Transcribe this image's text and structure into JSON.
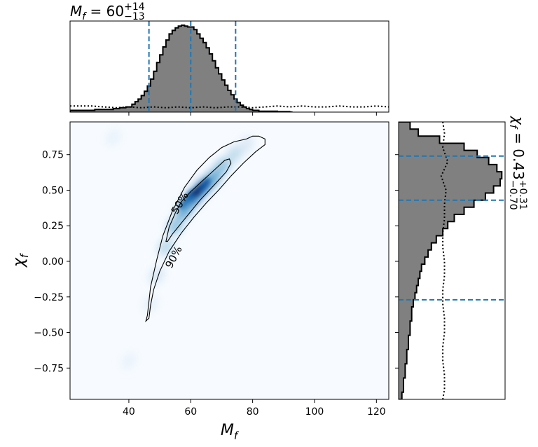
{
  "chart_data": {
    "type": "corner",
    "main": {
      "type": "heatmap",
      "colormap": "Blues",
      "xlim": [
        21,
        124
      ],
      "ylim": [
        -0.97,
        0.98
      ],
      "x_ticks": [
        40,
        60,
        80,
        100,
        120
      ],
      "y_ticks": [
        -0.75,
        -0.5,
        -0.25,
        0.0,
        0.25,
        0.5,
        0.75
      ],
      "x_tick_labels": [
        "40",
        "60",
        "80",
        "100",
        "120"
      ],
      "y_tick_labels": [
        "−0.75",
        "−0.50",
        "−0.25",
        "0.00",
        "0.25",
        "0.50",
        "0.75"
      ],
      "xlabel_base": "M",
      "xlabel_sub": "f",
      "ylabel_base": "χ",
      "ylabel_sub": "f",
      "contours": [
        {
          "label": "50%",
          "points": [
            [
              52,
              0.14
            ],
            [
              53,
              0.24
            ],
            [
              55,
              0.34
            ],
            [
              57,
              0.42
            ],
            [
              60,
              0.49
            ],
            [
              63,
              0.55
            ],
            [
              66,
              0.61
            ],
            [
              69,
              0.67
            ],
            [
              71,
              0.71
            ],
            [
              72.5,
              0.72
            ],
            [
              73,
              0.69
            ],
            [
              71.5,
              0.63
            ],
            [
              69,
              0.57
            ],
            [
              66,
              0.5
            ],
            [
              63,
              0.43
            ],
            [
              60,
              0.35
            ],
            [
              57,
              0.27
            ],
            [
              54,
              0.19
            ],
            [
              52.5,
              0.14
            ],
            [
              52,
              0.14
            ]
          ]
        },
        {
          "label": "90%",
          "points": [
            [
              45.5,
              -0.42
            ],
            [
              46,
              -0.38
            ],
            [
              47,
              -0.18
            ],
            [
              49,
              0.01
            ],
            [
              51,
              0.18
            ],
            [
              54,
              0.35
            ],
            [
              58,
              0.52
            ],
            [
              62,
              0.64
            ],
            [
              66,
              0.73
            ],
            [
              70,
              0.8
            ],
            [
              74,
              0.84
            ],
            [
              78,
              0.86
            ],
            [
              80,
              0.88
            ],
            [
              82,
              0.88
            ],
            [
              84,
              0.86
            ],
            [
              84,
              0.82
            ],
            [
              81,
              0.77
            ],
            [
              77,
              0.69
            ],
            [
              73,
              0.6
            ],
            [
              69,
              0.5
            ],
            [
              65,
              0.41
            ],
            [
              61,
              0.31
            ],
            [
              57,
              0.2
            ],
            [
              53,
              0.07
            ],
            [
              50,
              -0.07
            ],
            [
              48,
              -0.2
            ],
            [
              47,
              -0.31
            ],
            [
              46.5,
              -0.4
            ],
            [
              45.5,
              -0.42
            ]
          ]
        }
      ],
      "contour_label_positions": [
        {
          "text": "50%",
          "x": 56.5,
          "y": 0.41,
          "angle": -60
        },
        {
          "text": "90%",
          "x": 54.5,
          "y": 0.03,
          "angle": -62
        }
      ]
    },
    "top_hist": {
      "title_base": "M",
      "title_sub": "f",
      "title_value": " = 60",
      "title_upper": "+14",
      "title_lower": "−13",
      "median": 60,
      "lower": 46.5,
      "upper": 74.5,
      "bins": [
        [
          21,
          0.02
        ],
        [
          23,
          0.02
        ],
        [
          25,
          0.02
        ],
        [
          27,
          0.02
        ],
        [
          29,
          0.03
        ],
        [
          31,
          0.03
        ],
        [
          33,
          0.03
        ],
        [
          35,
          0.04
        ],
        [
          37,
          0.05
        ],
        [
          39,
          0.06
        ],
        [
          41,
          0.09
        ],
        [
          42,
          0.12
        ],
        [
          43,
          0.15
        ],
        [
          44,
          0.19
        ],
        [
          45,
          0.24
        ],
        [
          46,
          0.3
        ],
        [
          47,
          0.38
        ],
        [
          48,
          0.47
        ],
        [
          49,
          0.57
        ],
        [
          50,
          0.66
        ],
        [
          51,
          0.75
        ],
        [
          52,
          0.83
        ],
        [
          53,
          0.9
        ],
        [
          54,
          0.94
        ],
        [
          55,
          0.97
        ],
        [
          56,
          0.99
        ],
        [
          57,
          1.0
        ],
        [
          58,
          0.99
        ],
        [
          59,
          0.98
        ],
        [
          60,
          0.98
        ],
        [
          61,
          0.95
        ],
        [
          62,
          0.9
        ],
        [
          63,
          0.85
        ],
        [
          64,
          0.8
        ],
        [
          65,
          0.74
        ],
        [
          66,
          0.67
        ],
        [
          67,
          0.59
        ],
        [
          68,
          0.51
        ],
        [
          69,
          0.44
        ],
        [
          70,
          0.37
        ],
        [
          71,
          0.31
        ],
        [
          72,
          0.25
        ],
        [
          73,
          0.2
        ],
        [
          74,
          0.15
        ],
        [
          75,
          0.11
        ],
        [
          76,
          0.08
        ],
        [
          77,
          0.06
        ],
        [
          78,
          0.04
        ],
        [
          79,
          0.03
        ],
        [
          80,
          0.02
        ],
        [
          82,
          0.01
        ],
        [
          84,
          0.01
        ],
        [
          88,
          0.005
        ],
        [
          92,
          0.0
        ]
      ],
      "prior": [
        [
          21,
          0.07
        ],
        [
          28,
          0.07
        ],
        [
          32,
          0.06
        ],
        [
          36,
          0.05
        ],
        [
          40,
          0.06
        ],
        [
          44,
          0.05
        ],
        [
          48,
          0.06
        ],
        [
          52,
          0.05
        ],
        [
          56,
          0.06
        ],
        [
          60,
          0.05
        ],
        [
          64,
          0.06
        ],
        [
          68,
          0.05
        ],
        [
          72,
          0.06
        ],
        [
          76,
          0.06
        ],
        [
          80,
          0.05
        ],
        [
          84,
          0.06
        ],
        [
          88,
          0.07
        ],
        [
          92,
          0.06
        ],
        [
          96,
          0.07
        ],
        [
          100,
          0.06
        ],
        [
          104,
          0.06
        ],
        [
          108,
          0.07
        ],
        [
          112,
          0.06
        ],
        [
          116,
          0.06
        ],
        [
          120,
          0.07
        ],
        [
          124,
          0.06
        ]
      ]
    },
    "right_hist": {
      "title_base": "χ",
      "title_sub": "f",
      "title_value": " = 0.43",
      "title_upper": "+0.31",
      "title_lower": "−0.70",
      "median": 0.43,
      "lower": -0.27,
      "upper": 0.74,
      "bins": [
        [
          -0.97,
          0.02
        ],
        [
          -0.92,
          0.03
        ],
        [
          -0.87,
          0.03
        ],
        [
          -0.82,
          0.04
        ],
        [
          -0.77,
          0.04
        ],
        [
          -0.72,
          0.05
        ],
        [
          -0.67,
          0.05
        ],
        [
          -0.62,
          0.06
        ],
        [
          -0.57,
          0.06
        ],
        [
          -0.52,
          0.07
        ],
        [
          -0.47,
          0.07
        ],
        [
          -0.42,
          0.08
        ],
        [
          -0.37,
          0.08
        ],
        [
          -0.32,
          0.09
        ],
        [
          -0.27,
          0.1
        ],
        [
          -0.22,
          0.11
        ],
        [
          -0.17,
          0.12
        ],
        [
          -0.12,
          0.13
        ],
        [
          -0.07,
          0.14
        ],
        [
          -0.02,
          0.16
        ],
        [
          0.03,
          0.18
        ],
        [
          0.08,
          0.2
        ],
        [
          0.13,
          0.23
        ],
        [
          0.18,
          0.27
        ],
        [
          0.23,
          0.3
        ],
        [
          0.28,
          0.34
        ],
        [
          0.33,
          0.4
        ],
        [
          0.38,
          0.46
        ],
        [
          0.43,
          0.53
        ],
        [
          0.48,
          0.58
        ],
        [
          0.53,
          0.62
        ],
        [
          0.58,
          0.63
        ],
        [
          0.63,
          0.6
        ],
        [
          0.68,
          0.55
        ],
        [
          0.73,
          0.48
        ],
        [
          0.78,
          0.4
        ],
        [
          0.83,
          0.25
        ],
        [
          0.88,
          0.12
        ],
        [
          0.93,
          0.07
        ],
        [
          0.98,
          0.0
        ]
      ],
      "prior": [
        [
          -0.97,
          0.28
        ],
        [
          -0.9,
          0.27
        ],
        [
          -0.8,
          0.29
        ],
        [
          -0.7,
          0.26
        ],
        [
          -0.6,
          0.28
        ],
        [
          -0.5,
          0.27
        ],
        [
          -0.4,
          0.29
        ],
        [
          -0.3,
          0.26
        ],
        [
          -0.2,
          0.28
        ],
        [
          -0.1,
          0.27
        ],
        [
          0.0,
          0.29
        ],
        [
          0.1,
          0.26
        ],
        [
          0.2,
          0.28
        ],
        [
          0.3,
          0.27
        ],
        [
          0.4,
          0.29
        ],
        [
          0.5,
          0.28
        ],
        [
          0.6,
          0.27
        ],
        [
          0.7,
          0.29
        ],
        [
          0.8,
          0.28
        ],
        [
          0.9,
          0.27
        ],
        [
          0.98,
          0.28
        ]
      ]
    }
  }
}
